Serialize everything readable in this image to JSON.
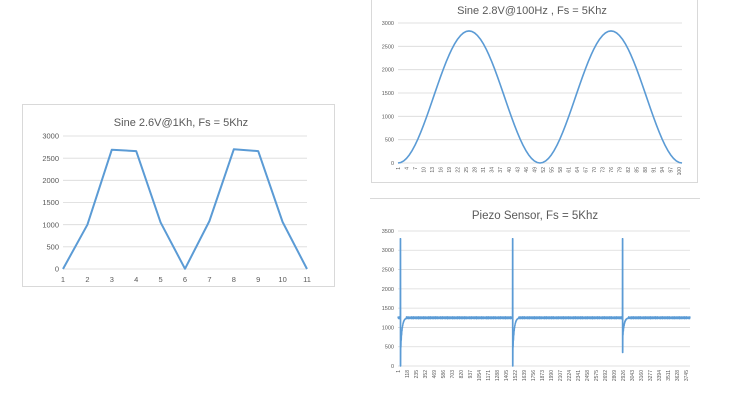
{
  "colors": {
    "series": "#5b9bd5",
    "grid": "#d9d9d9",
    "text": "#595959"
  },
  "chart_data": [
    {
      "type": "line",
      "title": "Sine 2.6V@1Kh, Fs = 5Khz",
      "xlabel": "",
      "ylabel": "",
      "categories": [
        "1",
        "2",
        "3",
        "4",
        "5",
        "6",
        "7",
        "8",
        "9",
        "10",
        "11"
      ],
      "series": [
        {
          "values": [
            0,
            1000,
            2690,
            2660,
            1050,
            5,
            1080,
            2700,
            2660,
            1060,
            0
          ]
        }
      ],
      "ylim": [
        0,
        3000
      ],
      "yticks": [
        "0",
        "500",
        "1000",
        "1500",
        "2000",
        "2500",
        "3000"
      ],
      "grid": true
    },
    {
      "type": "line",
      "title": "Sine 2.8V@100Hz , Fs = 5Khz",
      "xlabel": "",
      "ylabel": "",
      "categories": [
        "1",
        "4",
        "7",
        "10",
        "13",
        "16",
        "19",
        "22",
        "25",
        "28",
        "31",
        "34",
        "37",
        "40",
        "43",
        "46",
        "49",
        "52",
        "55",
        "58",
        "61",
        "64",
        "67",
        "70",
        "73",
        "76",
        "79",
        "82",
        "85",
        "88",
        "91",
        "94",
        "97",
        "100"
      ],
      "series": [
        {
          "period": 50,
          "amplitude_peak": 2830,
          "min": 0,
          "points": 101
        }
      ],
      "ylim": [
        0,
        3000
      ],
      "yticks": [
        "0",
        "500",
        "1000",
        "1500",
        "2000",
        "2500",
        "3000"
      ],
      "grid": true
    },
    {
      "type": "line",
      "title": "Piezo Sensor, Fs = 5Khz",
      "xlabel": "",
      "ylabel": "",
      "categories": [
        "1",
        "118",
        "235",
        "352",
        "469",
        "586",
        "703",
        "820",
        "937",
        "1054",
        "1171",
        "1288",
        "1405",
        "1522",
        "1639",
        "1756",
        "1873",
        "1990",
        "2107",
        "2224",
        "2341",
        "2458",
        "2575",
        "2692",
        "2809",
        "2926",
        "3043",
        "3160",
        "3277",
        "3394",
        "3511",
        "3628",
        "3745"
      ],
      "series": [
        {
          "baseline": 1250,
          "spikes": [
            {
              "index": 30,
              "peak": 3300,
              "dip": 0
            },
            {
              "index": 1490,
              "peak": 3300,
              "dip": 0
            },
            {
              "index": 2920,
              "peak": 3300,
              "dip": 350
            }
          ],
          "points": 3800
        }
      ],
      "ylim": [
        0,
        3500
      ],
      "yticks": [
        "0",
        "500",
        "1000",
        "1500",
        "2000",
        "2500",
        "3000",
        "3500"
      ],
      "grid": true
    }
  ]
}
